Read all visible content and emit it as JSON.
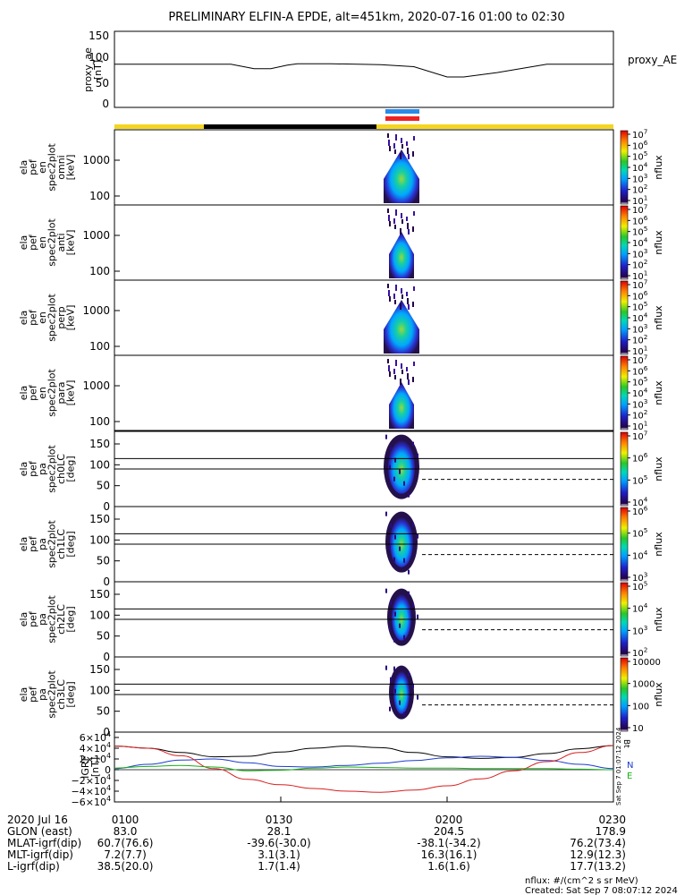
{
  "title": "PRELIMINARY ELFIN-A EPDE, alt=451km, 2020-07-16 01:00 to 02:30",
  "time_ticks": [
    "0100",
    "0130",
    "0200",
    "0230"
  ],
  "ephemeris": {
    "rows": [
      {
        "label": "2020 Jul 16",
        "values": [
          "0100",
          "0130",
          "0200",
          "0230"
        ]
      },
      {
        "label": "GLON (east)",
        "values": [
          "83.0",
          "28.1",
          "204.5",
          "178.9"
        ]
      },
      {
        "label": "MLAT-igrf(dip)",
        "values": [
          "60.7(76.6)",
          "-39.6(-30.0)",
          "-38.1(-34.2)",
          "76.2(73.4)"
        ]
      },
      {
        "label": "MLT-igrf(dip)",
        "values": [
          "7.2(7.7)",
          "3.1(3.1)",
          "16.3(16.1)",
          "12.9(12.3)"
        ]
      },
      {
        "label": "L-igrf(dip)",
        "values": [
          "38.5(20.0)",
          "1.7(1.4)",
          "1.6(1.6)",
          "17.7(13.2)"
        ]
      }
    ]
  },
  "footer": {
    "units": "nflux: #/(cm^2 s sr MeV)",
    "created": "Created: Sat Sep  7 08:07:12 2024"
  },
  "side_stamp": "Sat Sep  7 01:07:12 2024",
  "colorbar_label": "nflux",
  "colors": {
    "status_yellow": "#f5d51f",
    "status_black": "#000000",
    "marker_blue": "#2a8ae8",
    "marker_red": "#ee2222",
    "igrf_x_black": "#000000",
    "igrf_y_blue": "#1d3ccf",
    "igrf_z_red": "#d81f1f",
    "igrf_t_green": "#16b016"
  },
  "chart_data": [
    {
      "type": "line",
      "panel": "proxy_ae",
      "ylabel_lines": [
        "proxy_ae",
        "[nT]"
      ],
      "legend": "proxy_AE",
      "yticks": [
        "150",
        "100",
        "50",
        "0"
      ],
      "ylim": [
        0,
        155
      ],
      "x_hours": [
        1.0,
        1.2,
        1.3,
        1.35,
        1.42,
        1.47,
        1.52,
        1.55,
        1.65,
        1.8,
        1.9,
        2.0,
        2.05,
        2.15,
        2.3,
        2.5
      ],
      "values": [
        88,
        88,
        88,
        88,
        79,
        79,
        86,
        89,
        89,
        87,
        83,
        62,
        62,
        71,
        88,
        88
      ]
    },
    {
      "type": "heatmap",
      "panel": "en_spec2plot_omni",
      "ylabel_lines": [
        "ela",
        "pef",
        "en",
        "spec2plot",
        "omni",
        "[keV]"
      ],
      "yticks": [
        "1000",
        "100"
      ],
      "yscale": "log",
      "colorbar_ticks": [
        "10^7",
        "10^6",
        "10^5",
        "10^4",
        "10^3",
        "10^2",
        "10^1"
      ],
      "colorbar_label": "nflux"
    },
    {
      "type": "heatmap",
      "panel": "en_spec2plot_anti",
      "ylabel_lines": [
        "ela",
        "pef",
        "en",
        "spec2plot",
        "anti",
        "[keV]"
      ],
      "yticks": [
        "1000",
        "100"
      ],
      "yscale": "log",
      "colorbar_ticks": [
        "10^7",
        "10^6",
        "10^5",
        "10^4",
        "10^3",
        "10^2",
        "10^1"
      ],
      "colorbar_label": "nflux"
    },
    {
      "type": "heatmap",
      "panel": "en_spec2plot_perp",
      "ylabel_lines": [
        "ela",
        "pef",
        "en",
        "spec2plot",
        "perp",
        "[keV]"
      ],
      "yticks": [
        "1000",
        "100"
      ],
      "yscale": "log",
      "colorbar_ticks": [
        "10^7",
        "10^6",
        "10^5",
        "10^4",
        "10^3",
        "10^2",
        "10^1"
      ],
      "colorbar_label": "nflux"
    },
    {
      "type": "heatmap",
      "panel": "en_spec2plot_para",
      "ylabel_lines": [
        "ela",
        "pef",
        "en",
        "spec2plot",
        "para",
        "[keV]"
      ],
      "yticks": [
        "1000",
        "100"
      ],
      "yscale": "log",
      "colorbar_ticks": [
        "10^7",
        "10^6",
        "10^5",
        "10^4",
        "10^3",
        "10^2",
        "10^1"
      ],
      "colorbar_label": "nflux"
    },
    {
      "type": "heatmap",
      "panel": "pa_spec2plot_ch0LC",
      "ylabel_lines": [
        "ela",
        "pef",
        "pa",
        "spec2plot",
        "ch0LC",
        "[deg]"
      ],
      "yticks": [
        "150",
        "100",
        "50",
        "0"
      ],
      "ylim": [
        0,
        180
      ],
      "reference_lines_deg": [
        90,
        115
      ],
      "dashed_line_deg": 65,
      "colorbar_ticks": [
        "10^7",
        "10^6",
        "10^5",
        "10^4"
      ],
      "colorbar_label": "nflux"
    },
    {
      "type": "heatmap",
      "panel": "pa_spec2plot_ch1LC",
      "ylabel_lines": [
        "ela",
        "pef",
        "pa",
        "spec2plot",
        "ch1LC",
        "[deg]"
      ],
      "yticks": [
        "150",
        "100",
        "50",
        "0"
      ],
      "ylim": [
        0,
        180
      ],
      "reference_lines_deg": [
        90,
        115
      ],
      "dashed_line_deg": 65,
      "colorbar_ticks": [
        "10^6",
        "10^5",
        "10^4",
        "10^3"
      ],
      "colorbar_label": "nflux"
    },
    {
      "type": "heatmap",
      "panel": "pa_spec2plot_ch2LC",
      "ylabel_lines": [
        "ela",
        "pef",
        "pa",
        "spec2plot",
        "ch2LC",
        "[deg]"
      ],
      "yticks": [
        "150",
        "100",
        "50",
        "0"
      ],
      "ylim": [
        0,
        180
      ],
      "reference_lines_deg": [
        90,
        115
      ],
      "dashed_line_deg": 65,
      "colorbar_ticks": [
        "10^5",
        "10^4",
        "10^3",
        "10^2"
      ],
      "colorbar_label": "nflux"
    },
    {
      "type": "heatmap",
      "panel": "pa_spec2plot_ch3LC",
      "ylabel_lines": [
        "ela",
        "pef",
        "pa",
        "spec2plot",
        "ch3LC",
        "[deg]"
      ],
      "yticks": [
        "150",
        "100",
        "50",
        "0"
      ],
      "ylim": [
        0,
        180
      ],
      "reference_lines_deg": [
        90,
        115
      ],
      "dashed_line_deg": 65,
      "colorbar_ticks": [
        "10000",
        "1000",
        "100",
        "10"
      ],
      "colorbar_label": "nflux"
    },
    {
      "type": "line",
      "panel": "igrf",
      "ylabel_lines": [
        "IGRF",
        "[nT]"
      ],
      "yticks": [
        "6×10^4",
        "4×10^4",
        "2×10^4",
        "0",
        "−2×10^4",
        "−4×10^4",
        "−6×10^4"
      ],
      "ylim": [
        -60000,
        60000
      ],
      "series": [
        {
          "name": "x",
          "x_hours": [
            1.0,
            1.1,
            1.2,
            1.3,
            1.4,
            1.5,
            1.6,
            1.7,
            1.8,
            1.9,
            2.0,
            2.1,
            2.2,
            2.3,
            2.4,
            2.5
          ],
          "values": [
            44000,
            40000,
            32000,
            24000,
            25000,
            33000,
            40000,
            44000,
            41000,
            32000,
            24000,
            21000,
            23000,
            30000,
            39000,
            45000
          ]
        },
        {
          "name": "y",
          "x_hours": [
            1.0,
            1.1,
            1.2,
            1.3,
            1.4,
            1.5,
            1.6,
            1.7,
            1.8,
            1.9,
            2.0,
            2.1,
            2.2,
            2.3,
            2.4,
            2.5
          ],
          "values": [
            2000,
            10000,
            18000,
            20000,
            13000,
            6000,
            5000,
            8000,
            12000,
            17000,
            22000,
            25000,
            23000,
            17000,
            10000,
            2000
          ]
        },
        {
          "name": "z",
          "x_hours": [
            1.0,
            1.1,
            1.2,
            1.3,
            1.4,
            1.5,
            1.6,
            1.7,
            1.8,
            1.9,
            2.0,
            2.1,
            2.2,
            2.3,
            2.4,
            2.5
          ],
          "values": [
            44000,
            40000,
            26000,
            2000,
            -18000,
            -28000,
            -35000,
            -40000,
            -42000,
            -38000,
            -30000,
            -17000,
            -2000,
            15000,
            32000,
            45000
          ]
        },
        {
          "name": "t",
          "x_hours": [
            1.0,
            1.1,
            1.2,
            1.3,
            1.4,
            1.5,
            1.6,
            1.7,
            1.8,
            1.9,
            2.0,
            2.1,
            2.2,
            2.3,
            2.4,
            2.5
          ],
          "values": [
            3000,
            6000,
            8000,
            5000,
            -2000,
            -1000,
            3000,
            5000,
            4000,
            3000,
            3000,
            2000,
            2000,
            2000,
            1000,
            0
          ]
        }
      ],
      "series_tags": [
        "Bt",
        "N",
        "E"
      ]
    }
  ]
}
